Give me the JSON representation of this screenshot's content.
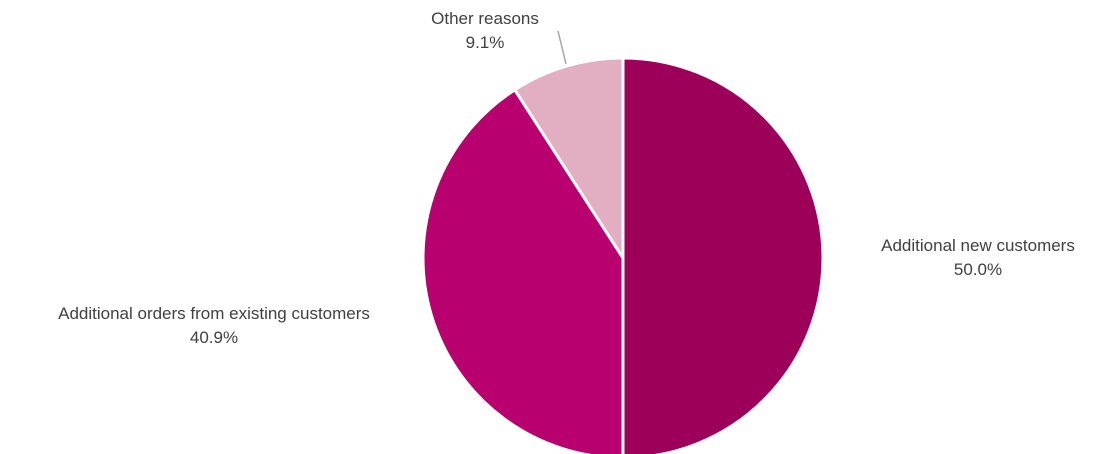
{
  "chart_data": {
    "type": "pie",
    "title": "",
    "start_angle_deg": 0,
    "direction": "clockwise",
    "slice_border_color": "#ffffff",
    "slices": [
      {
        "label": "Additional new customers",
        "value": 50.0,
        "value_label": "50.0%",
        "color": "#9C0059"
      },
      {
        "label": "Additional orders from existing customers",
        "value": 40.9,
        "value_label": "40.9%",
        "color": "#B8006E"
      },
      {
        "label": "Other reasons",
        "value": 9.1,
        "value_label": "9.1%",
        "color": "#E2AEC2"
      }
    ],
    "label_text_color": "#404040",
    "leader_line_color": "#A6A6A6"
  }
}
